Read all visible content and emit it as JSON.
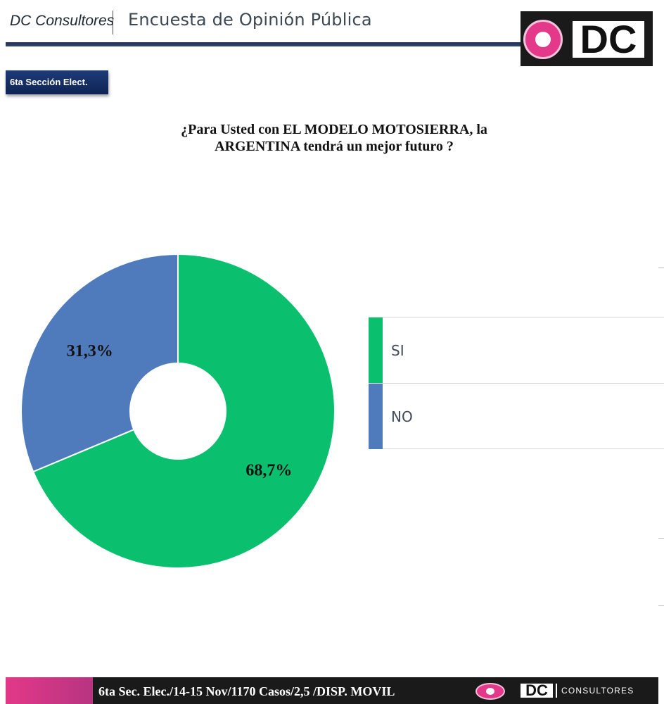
{
  "header": {
    "brand": "DC Consultores",
    "title": "Encuesta de Opinión Pública",
    "logo_text": "DC",
    "brand_color": "#e4388b"
  },
  "section_badge": "6ta Sección Elect.",
  "chart_data": {
    "type": "pie",
    "title": "¿Para Usted con EL MODELO MOTOSIERRA, la ARGENTINA tendrá un mejor futuro ?",
    "title_lines": [
      "¿Para Usted con EL MODELO MOTOSIERRA, la",
      "ARGENTINA tendrá un mejor futuro ?"
    ],
    "donut": true,
    "legend_position": "right",
    "slices": [
      {
        "name": "SI",
        "value": 68.7,
        "label": "68,7%",
        "color": "#0abf6e"
      },
      {
        "name": "NO",
        "value": 31.3,
        "label": "31,3%",
        "color": "#4f7bbc"
      }
    ]
  },
  "footer": {
    "text": "6ta Sec. Elec./14-15 Nov/1170 Casos/2,5 /DISP. MOVIL",
    "logo_text": "DC",
    "logo_sub": "CONSULTORES"
  }
}
